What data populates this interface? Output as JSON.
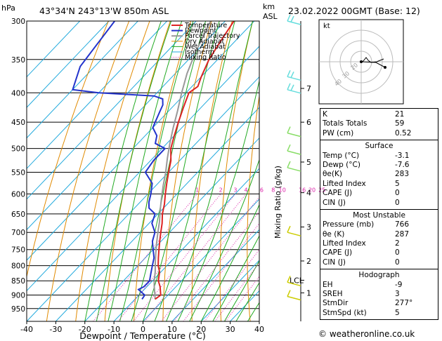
{
  "header": {
    "pressure_unit": "hPa",
    "location": "43°34'N  243°13'W  850m  ASL",
    "height_unit_line1": "km",
    "height_unit_line2": "ASL",
    "datetime": "23.02.2022  00GMT  (Base: 12)"
  },
  "chart_data": {
    "type": "line",
    "title": "43°34'N  243°13'W  850m  ASL",
    "xlabel": "Dewpoint / Temperature (°C)",
    "ylabel": "hPa",
    "right_label": "Mixing Ratio (g/kg)",
    "xlim": [
      -40,
      40
    ],
    "ylim": [
      1000,
      300
    ],
    "x_ticks": [
      -40,
      -30,
      -20,
      -10,
      0,
      10,
      20,
      30,
      40
    ],
    "pressure_levels": [
      300,
      350,
      400,
      450,
      500,
      550,
      600,
      650,
      700,
      750,
      800,
      850,
      900,
      950
    ],
    "km_ticks": [
      {
        "label": "7",
        "p": 393
      },
      {
        "label": "6",
        "p": 450
      },
      {
        "label": "5",
        "p": 528
      },
      {
        "label": "4",
        "p": 597
      },
      {
        "label": "3",
        "p": 685
      },
      {
        "label": "2",
        "p": 785
      },
      {
        "label": "1",
        "p": 892
      }
    ],
    "lcl": {
      "label": "LCL",
      "p": 848
    },
    "mixing_ratio_labels": [
      "1",
      "2",
      "3",
      "4",
      "6",
      "8",
      "10",
      "16",
      "20",
      "25"
    ],
    "mixing_ratio_values": [
      1,
      2,
      3,
      4,
      6,
      8,
      10,
      16,
      20,
      25
    ],
    "legend": [
      "Temperature",
      "Dewpoint",
      "Parcel Trajectory",
      "Dry Adiabat",
      "Wet Adiabat",
      "Isotherm",
      "Mixing Ratio"
    ],
    "series": [
      {
        "name": "Temperature",
        "points": [
          [
            -3.1,
            915
          ],
          [
            -2.5,
            900
          ],
          [
            -5.5,
            870
          ],
          [
            -8,
            850
          ],
          [
            -10.5,
            820
          ],
          [
            -13,
            800
          ],
          [
            -15.5,
            775
          ],
          [
            -18,
            750
          ],
          [
            -20.5,
            725
          ],
          [
            -23,
            700
          ],
          [
            -25.5,
            675
          ],
          [
            -28.5,
            650
          ],
          [
            -31,
            625
          ],
          [
            -34,
            600
          ],
          [
            -37,
            575
          ],
          [
            -40,
            550
          ],
          [
            -43,
            525
          ],
          [
            -47,
            500
          ],
          [
            -50,
            475
          ],
          [
            -53,
            450
          ],
          [
            -56,
            425
          ],
          [
            -59,
            400
          ],
          [
            -58,
            390
          ],
          [
            -60,
            375
          ],
          [
            -63,
            350
          ],
          [
            -65,
            325
          ],
          [
            -67,
            300
          ]
        ]
      },
      {
        "name": "Dewpoint",
        "points": [
          [
            -7.6,
            915
          ],
          [
            -8,
            900
          ],
          [
            -12,
            880
          ],
          [
            -11,
            870
          ],
          [
            -11,
            850
          ],
          [
            -13,
            825
          ],
          [
            -15,
            800
          ],
          [
            -17,
            775
          ],
          [
            -20,
            750
          ],
          [
            -23,
            725
          ],
          [
            -25,
            700
          ],
          [
            -29,
            675
          ],
          [
            -31,
            650
          ],
          [
            -35,
            635
          ],
          [
            -37,
            620
          ],
          [
            -39,
            600
          ],
          [
            -42,
            575
          ],
          [
            -48,
            550
          ],
          [
            -49,
            525
          ],
          [
            -49,
            500
          ],
          [
            -54,
            490
          ],
          [
            -56,
            475
          ],
          [
            -60,
            460
          ],
          [
            -61,
            450
          ],
          [
            -63,
            430
          ],
          [
            -64,
            420
          ],
          [
            -66,
            410
          ],
          [
            -70,
            405
          ],
          [
            -90,
            400
          ],
          [
            -100,
            395
          ],
          [
            -105,
            360
          ],
          [
            -108,
            300
          ]
        ]
      },
      {
        "name": "Parcel Trajectory",
        "points": [
          [
            -3.1,
            915
          ],
          [
            -4.5,
            900
          ],
          [
            -7.5,
            870
          ],
          [
            -9.6,
            848
          ],
          [
            -12,
            820
          ],
          [
            -15,
            790
          ],
          [
            -18,
            760
          ],
          [
            -21,
            730
          ],
          [
            -24,
            700
          ],
          [
            -27,
            670
          ],
          [
            -30.5,
            640
          ],
          [
            -34,
            610
          ],
          [
            -37.5,
            580
          ],
          [
            -41,
            550
          ],
          [
            -45,
            520
          ],
          [
            -49,
            490
          ],
          [
            -53,
            460
          ],
          [
            -57,
            430
          ],
          [
            -61.5,
            400
          ],
          [
            -66,
            370
          ],
          [
            -70,
            340
          ],
          [
            -75,
            300
          ]
        ]
      }
    ]
  },
  "hodograph": {
    "unit_label": "kt",
    "ring_labels": [
      "20",
      "30",
      "40"
    ]
  },
  "wind_barbs": [
    {
      "p": 300
    },
    {
      "p": 375
    },
    {
      "p": 395
    },
    {
      "p": 470
    },
    {
      "p": 505
    },
    {
      "p": 540
    },
    {
      "p": 700
    },
    {
      "p": 855
    },
    {
      "p": 905
    }
  ],
  "indices": {
    "top": [
      {
        "label": "K",
        "value": "21"
      },
      {
        "label": "Totals Totals",
        "value": "59"
      },
      {
        "label": "PW (cm)",
        "value": "0.52"
      }
    ],
    "surface": {
      "title": "Surface",
      "rows": [
        {
          "label": "Temp (°C)",
          "value": "-3.1"
        },
        {
          "label": "Dewp (°C)",
          "value": "-7.6"
        },
        {
          "label": "θe(K)",
          "value": "283"
        },
        {
          "label": "Lifted Index",
          "value": "5"
        },
        {
          "label": "CAPE (J)",
          "value": "0"
        },
        {
          "label": "CIN (J)",
          "value": "0"
        }
      ]
    },
    "most_unstable": {
      "title": "Most Unstable",
      "rows": [
        {
          "label": "Pressure (mb)",
          "value": "766"
        },
        {
          "label": "θe (K)",
          "value": "287"
        },
        {
          "label": "Lifted Index",
          "value": "2"
        },
        {
          "label": "CAPE (J)",
          "value": "0"
        },
        {
          "label": "CIN (J)",
          "value": "0"
        }
      ]
    },
    "hodograph_stats": {
      "title": "Hodograph",
      "rows": [
        {
          "label": "EH",
          "value": "-9"
        },
        {
          "label": "SREH",
          "value": "3"
        },
        {
          "label": "StmDir",
          "value": "277°"
        },
        {
          "label": "StmSpd (kt)",
          "value": "5"
        }
      ]
    }
  },
  "footer": "© weatheronline.co.uk",
  "colors": {
    "temperature": "#dd2222",
    "dewpoint": "#2233cc",
    "parcel": "#999999",
    "dry_adiabat": "#e08a00",
    "wet_adiabat": "#22aa22",
    "isotherm": "#22aadd",
    "mixing_ratio": "#dd22aa",
    "wind_barb": "#66dddd",
    "wind_barb_low": "#cccc00"
  }
}
